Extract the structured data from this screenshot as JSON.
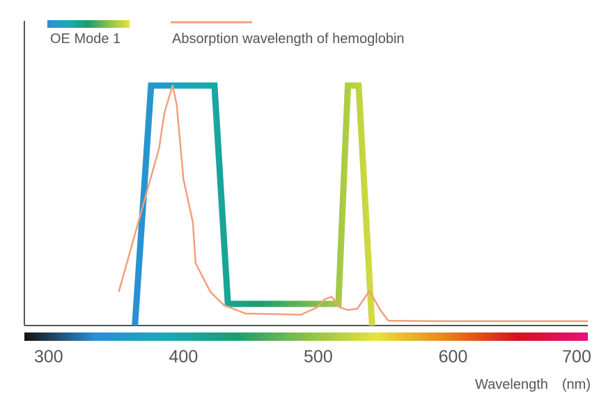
{
  "chart_data": {
    "type": "line",
    "title": "",
    "xlabel": "Wavelength　(nm)",
    "ylabel": "",
    "xlim": [
      282,
      700
    ],
    "ylim": [
      0,
      1
    ],
    "ticks": [
      "300",
      "400",
      "500",
      "600",
      "700"
    ],
    "tick_values": [
      300,
      400,
      500,
      600,
      700
    ],
    "grid": false,
    "legend_position": "top-left",
    "series": [
      {
        "name": "OE Mode 1",
        "style": "gradient band",
        "colors": [
          "#2a8fd6",
          "#1aa9b8",
          "#1a9e6e",
          "#8cc04a",
          "#e8e33a"
        ],
        "points": [
          [
            364,
            0.0
          ],
          [
            376,
            1.0
          ],
          [
            423,
            1.0
          ],
          [
            433,
            0.09
          ],
          [
            515,
            0.09
          ],
          [
            522,
            1.0
          ],
          [
            530,
            1.0
          ],
          [
            540,
            0.0
          ]
        ]
      },
      {
        "name": "Absorption wavelength of hemoglobin",
        "color": "#f0a07c",
        "points": [
          [
            352,
            0.14
          ],
          [
            382,
            0.74
          ],
          [
            386,
            0.89
          ],
          [
            392,
            1.0
          ],
          [
            395,
            0.92
          ],
          [
            400,
            0.61
          ],
          [
            407,
            0.43
          ],
          [
            409,
            0.26
          ],
          [
            420,
            0.14
          ],
          [
            430,
            0.085
          ],
          [
            446,
            0.05
          ],
          [
            462,
            0.048
          ],
          [
            472,
            0.047
          ],
          [
            487,
            0.045
          ],
          [
            499,
            0.075
          ],
          [
            505,
            0.11
          ],
          [
            510,
            0.12
          ],
          [
            516,
            0.075
          ],
          [
            522,
            0.065
          ],
          [
            529,
            0.07
          ],
          [
            538,
            0.145
          ],
          [
            546,
            0.065
          ],
          [
            552,
            0.02
          ],
          [
            600,
            0.018
          ],
          [
            650,
            0.018
          ],
          [
            700,
            0.018
          ]
        ]
      }
    ],
    "spectrum_bar_colors": [
      "#1a1010",
      "#2a8fd6",
      "#1aa9b8",
      "#1a9e6e",
      "#8cc04a",
      "#e8e33a",
      "#e8821a",
      "#d8101e",
      "#e8107a"
    ]
  }
}
